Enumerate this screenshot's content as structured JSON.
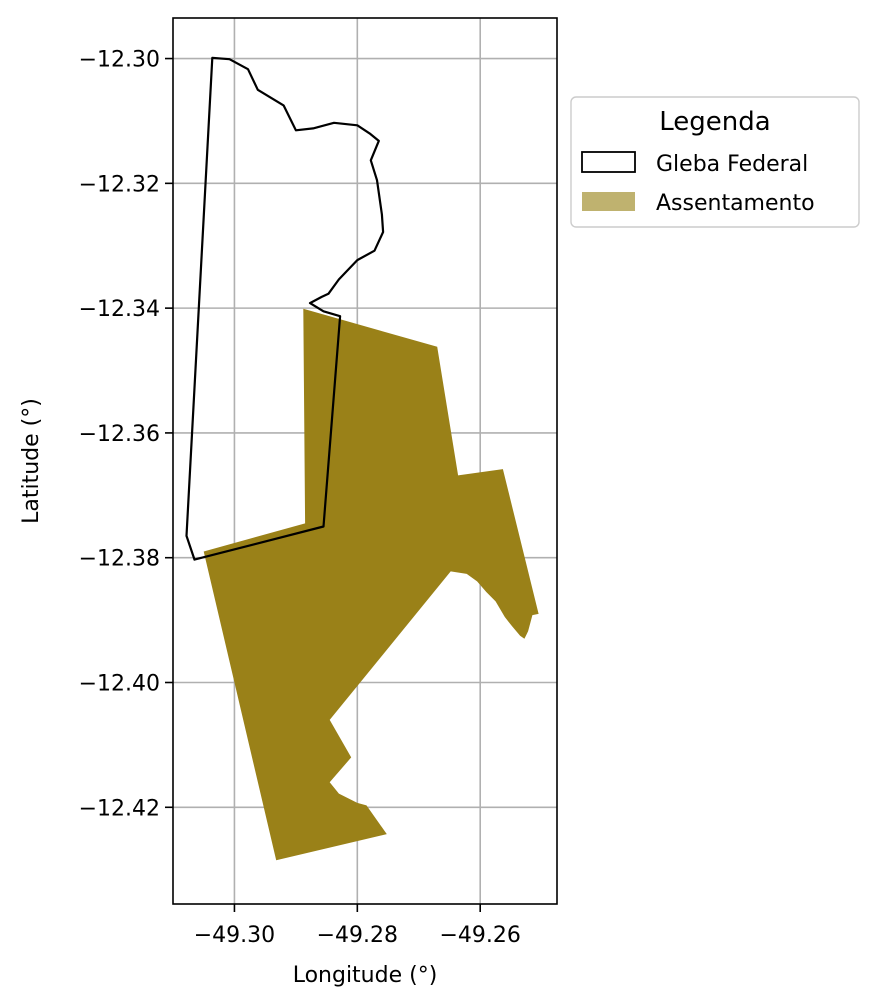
{
  "map": {
    "xlabel": "Longitude (°)",
    "ylabel": "Latitude (°)",
    "xlim": [
      -49.31,
      -49.2475
    ],
    "ylim": [
      -12.4355,
      -12.2935
    ],
    "x_ticks": [
      {
        "value": -49.3,
        "label": "−49.30"
      },
      {
        "value": -49.28,
        "label": "−49.28"
      },
      {
        "value": -49.26,
        "label": "−49.26"
      }
    ],
    "y_ticks": [
      {
        "value": -12.3,
        "label": "−12.30"
      },
      {
        "value": -12.32,
        "label": "−12.32"
      },
      {
        "value": -12.34,
        "label": "−12.34"
      },
      {
        "value": -12.36,
        "label": "−12.36"
      },
      {
        "value": -12.38,
        "label": "−12.38"
      },
      {
        "value": -12.4,
        "label": "−12.40"
      },
      {
        "value": -12.42,
        "label": "−12.42"
      }
    ],
    "grid": true
  },
  "legend": {
    "title": "Legenda",
    "placement": "outside-upper-right",
    "items": [
      {
        "label": "Gleba Federal",
        "style": "outline",
        "color": "#000000"
      },
      {
        "label": "Assentamento",
        "style": "fill",
        "color": "#bfb26f"
      }
    ]
  },
  "colors": {
    "assentamento_fill": "#9a8118",
    "gleba_edge": "#000000",
    "grid": "#b0b0b0"
  },
  "layers": {
    "gleba_federal": [
      [
        -49.3036,
        -12.2999
      ],
      [
        -49.3008,
        -12.3001
      ],
      [
        -49.2978,
        -12.3017
      ],
      [
        -49.2962,
        -12.305
      ],
      [
        -49.292,
        -12.3075
      ],
      [
        -49.29,
        -12.3115
      ],
      [
        -49.2872,
        -12.3112
      ],
      [
        -49.2838,
        -12.3103
      ],
      [
        -49.28,
        -12.3107
      ],
      [
        -49.278,
        -12.312
      ],
      [
        -49.2765,
        -12.3132
      ],
      [
        -49.2778,
        -12.3163
      ],
      [
        -49.2768,
        -12.3195
      ],
      [
        -49.276,
        -12.325
      ],
      [
        -49.2758,
        -12.3278
      ],
      [
        -49.2772,
        -12.3308
      ],
      [
        -49.28,
        -12.3323
      ],
      [
        -49.283,
        -12.3354
      ],
      [
        -49.2847,
        -12.3377
      ],
      [
        -49.2858,
        -12.3382
      ],
      [
        -49.2877,
        -12.3392
      ],
      [
        -49.2855,
        -12.3405
      ],
      [
        -49.2828,
        -12.3413
      ],
      [
        -49.2855,
        -12.375
      ],
      [
        -49.3065,
        -12.3803
      ],
      [
        -49.3078,
        -12.3765
      ],
      [
        -49.3036,
        -12.2999
      ]
    ],
    "assentamento": [
      [
        -49.2888,
        -12.3401
      ],
      [
        -49.267,
        -12.3462
      ],
      [
        -49.2636,
        -12.3668
      ],
      [
        -49.2563,
        -12.3658
      ],
      [
        -49.2505,
        -12.389
      ],
      [
        -49.2515,
        -12.3892
      ],
      [
        -49.2522,
        -12.3918
      ],
      [
        -49.2528,
        -12.393
      ],
      [
        -49.2535,
        -12.3925
      ],
      [
        -49.2548,
        -12.391
      ],
      [
        -49.256,
        -12.3895
      ],
      [
        -49.2575,
        -12.387
      ],
      [
        -49.259,
        -12.3855
      ],
      [
        -49.2605,
        -12.3838
      ],
      [
        -49.2622,
        -12.3826
      ],
      [
        -49.2648,
        -12.3822
      ],
      [
        -49.2845,
        -12.406
      ],
      [
        -49.281,
        -12.412
      ],
      [
        -49.2845,
        -12.416
      ],
      [
        -49.283,
        -12.4178
      ],
      [
        -49.28,
        -12.4193
      ],
      [
        -49.2785,
        -12.4197
      ],
      [
        -49.2752,
        -12.4243
      ],
      [
        -49.2932,
        -12.4285
      ],
      [
        -49.305,
        -12.379
      ],
      [
        -49.2885,
        -12.3745
      ],
      [
        -49.2888,
        -12.3401
      ]
    ]
  }
}
